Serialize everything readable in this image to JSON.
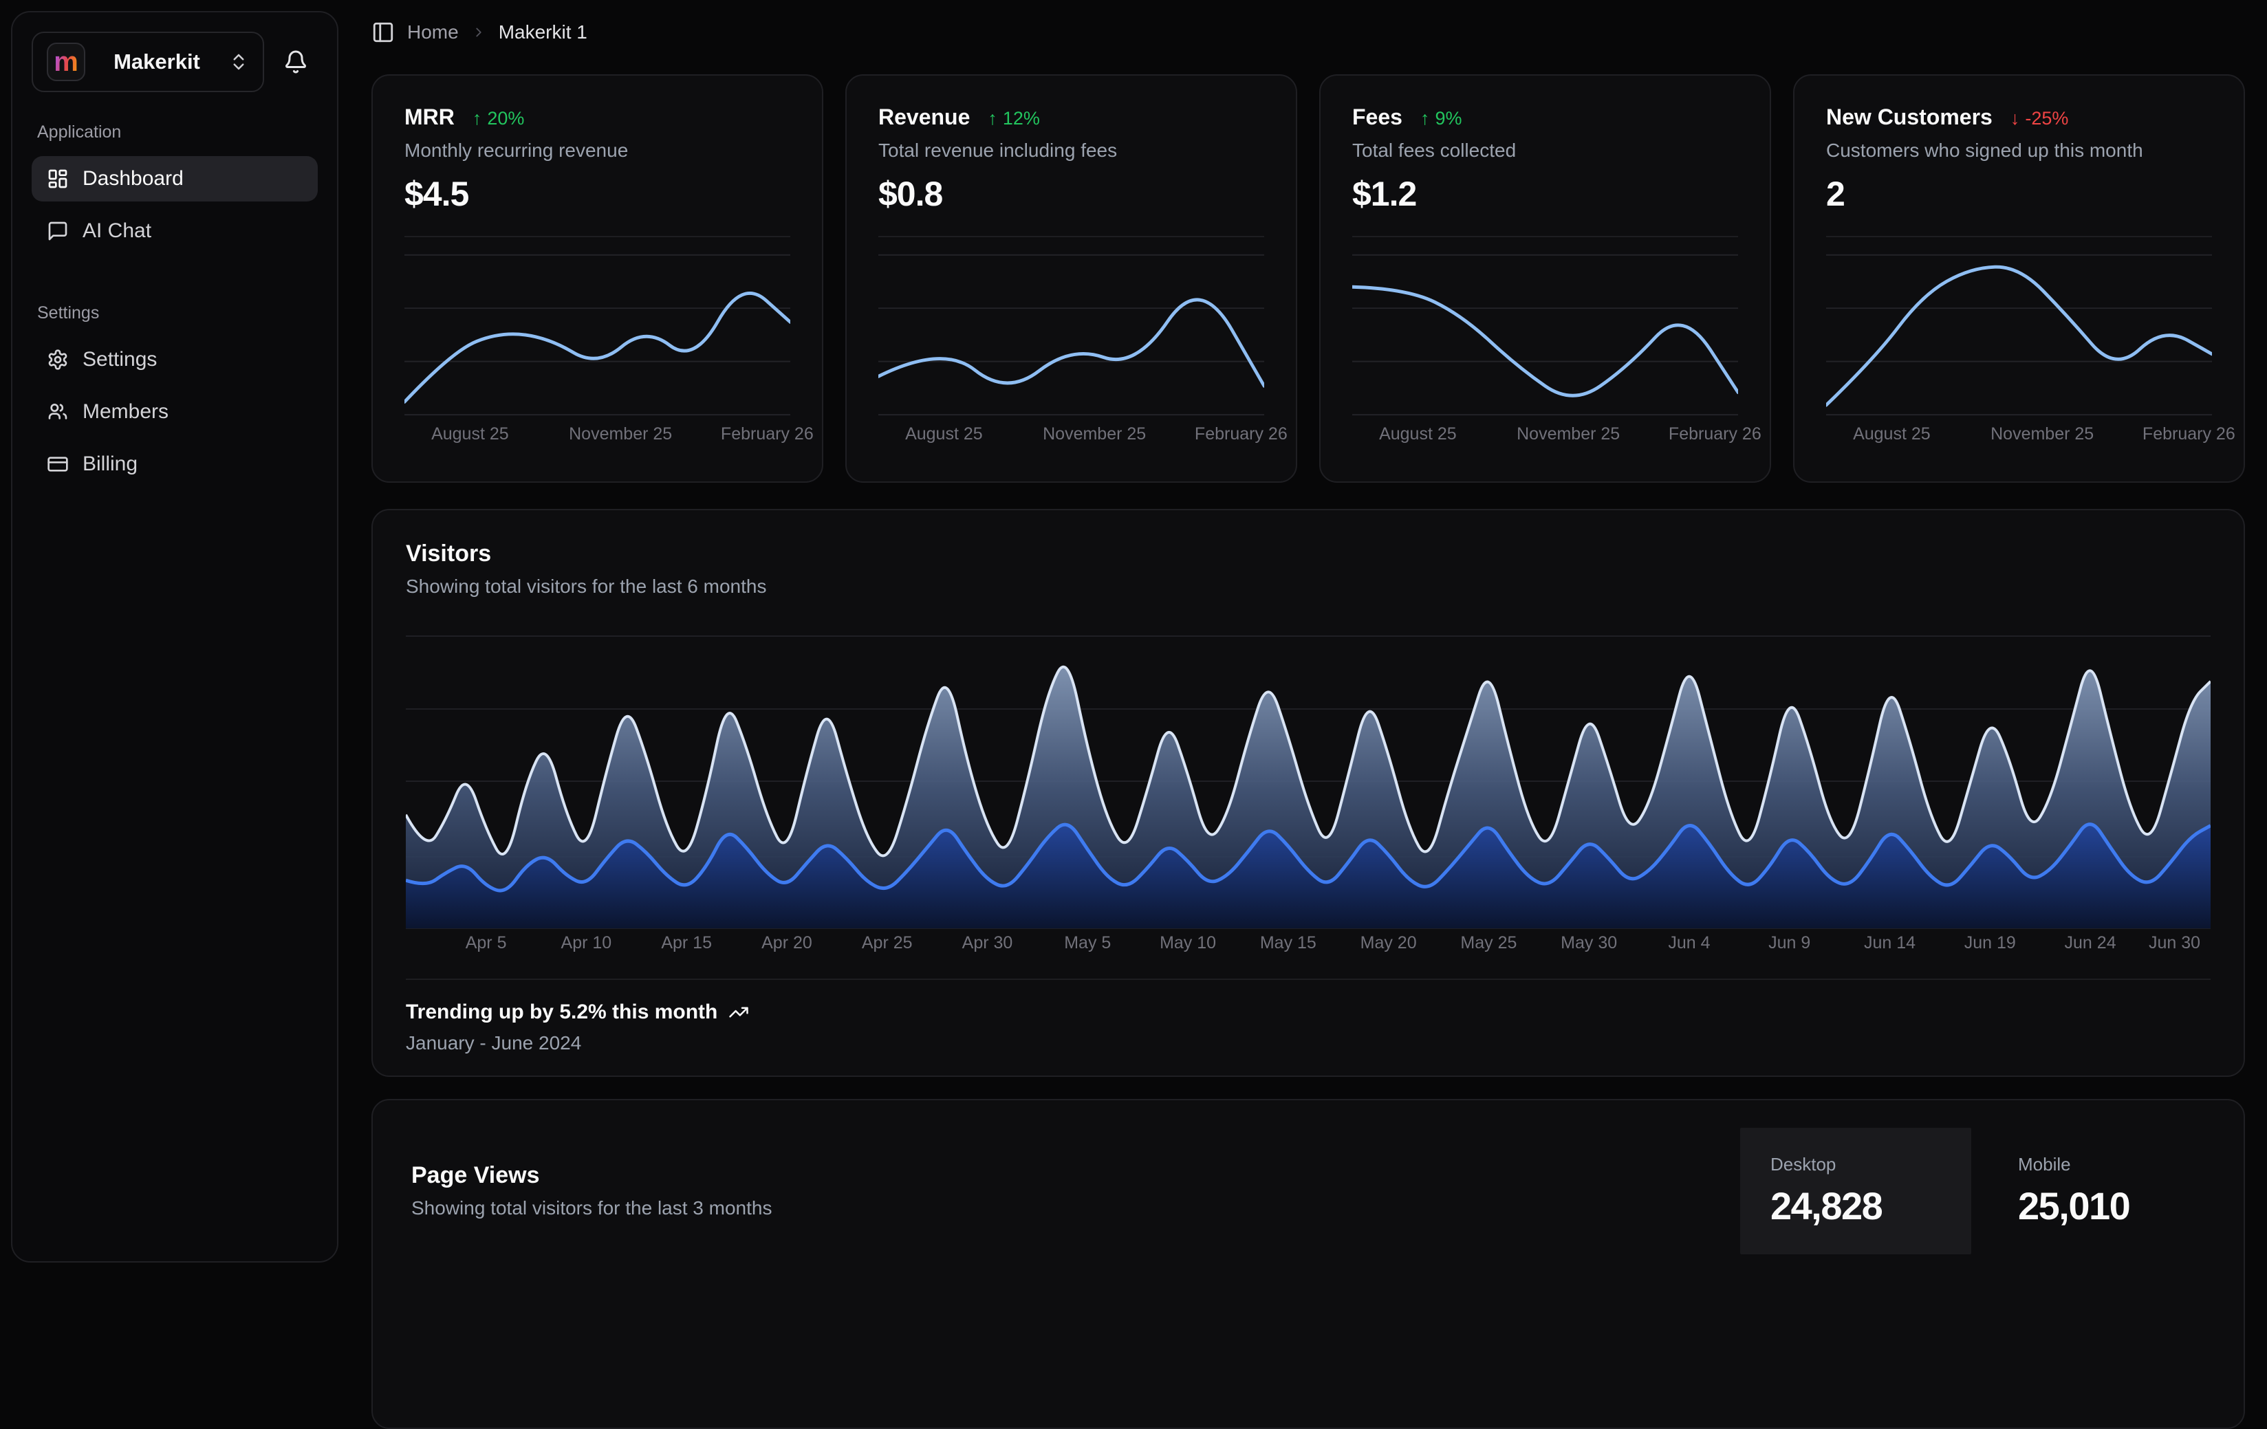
{
  "colors": {
    "accent_blue": "#3b82f6",
    "light_blue_line": "#d9e4f4",
    "spark_blue": "#8fbef3",
    "positive_green": "#22c55e",
    "negative_red": "#ef4444",
    "card_bg": "#0d0d0f",
    "card_border": "#1f1f23",
    "logo_gradient": [
      "#a855f7",
      "#e5484d",
      "#f59e0b"
    ]
  },
  "icons": {
    "arrow_up": "↑",
    "arrow_down": "↓"
  },
  "workspace": {
    "name": "Makerkit",
    "logo_letter": "m"
  },
  "breadcrumb": {
    "home": "Home",
    "current": "Makerkit 1"
  },
  "sidebar": {
    "sections": [
      {
        "label": "Application",
        "items": [
          {
            "label": "Dashboard",
            "icon": "dashboard-icon",
            "active": true
          },
          {
            "label": "AI Chat",
            "icon": "chat-icon",
            "active": false
          }
        ]
      },
      {
        "label": "Settings",
        "items": [
          {
            "label": "Settings",
            "icon": "gear-icon",
            "active": false
          },
          {
            "label": "Members",
            "icon": "users-icon",
            "active": false
          },
          {
            "label": "Billing",
            "icon": "credit-card-icon",
            "active": false
          }
        ]
      }
    ]
  },
  "stat_cards": [
    {
      "title": "MRR",
      "delta": "20%",
      "direction": "up",
      "description": "Monthly recurring revenue",
      "value": "$4.5"
    },
    {
      "title": "Revenue",
      "delta": "12%",
      "direction": "up",
      "description": "Total revenue including fees",
      "value": "$0.8"
    },
    {
      "title": "Fees",
      "delta": "9%",
      "direction": "up",
      "description": "Total fees collected",
      "value": "$1.2"
    },
    {
      "title": "New Customers",
      "delta": "-25%",
      "direction": "down",
      "description": "Customers who signed up this month",
      "value": "2"
    }
  ],
  "visitors_card": {
    "title": "Visitors",
    "subtitle": "Showing total visitors for the last 6 months",
    "footer_primary": "Trending up by 5.2% this month",
    "footer_secondary": "January - June 2024"
  },
  "page_views_card": {
    "title": "Page Views",
    "subtitle": "Showing total visitors for the last 3 months",
    "toggles": [
      {
        "label": "Desktop",
        "value": "24,828",
        "active": true
      },
      {
        "label": "Mobile",
        "value": "25,010",
        "active": false
      }
    ]
  },
  "chart_data": [
    {
      "type": "line",
      "title": "MRR sparkline",
      "ylim": [
        0,
        100
      ],
      "grid": true,
      "x_ticks": [
        "August 25",
        "November 25",
        "February 26"
      ],
      "values": [
        8,
        40,
        52,
        48,
        30,
        55,
        32,
        85,
        58
      ]
    },
    {
      "type": "line",
      "title": "Revenue sparkline",
      "ylim": [
        0,
        100
      ],
      "grid": true,
      "x_ticks": [
        "August 25",
        "November 25",
        "February 26"
      ],
      "values": [
        24,
        44,
        12,
        43,
        29,
        88,
        18
      ]
    },
    {
      "type": "line",
      "title": "Fees sparkline",
      "ylim": [
        0,
        100
      ],
      "grid": true,
      "x_ticks": [
        "August 25",
        "November 25",
        "February 26"
      ],
      "values": [
        80,
        79,
        62,
        30,
        6,
        30,
        67,
        14
      ]
    },
    {
      "type": "line",
      "title": "New Customers sparkline",
      "ylim": [
        0,
        100
      ],
      "grid": true,
      "x_ticks": [
        "August 25",
        "November 25",
        "February 26"
      ],
      "values": [
        6,
        35,
        75,
        92,
        93,
        62,
        27,
        55,
        38
      ]
    },
    {
      "type": "area",
      "title": "Visitors",
      "stacked": true,
      "grid": true,
      "x_range": [
        "Apr 1",
        "Jun 30"
      ],
      "days": 91,
      "ylim": [
        0,
        700
      ],
      "legend": "none",
      "x_tick_labels": [
        {
          "label": "Apr 5",
          "day_index": 4
        },
        {
          "label": "Apr 10",
          "day_index": 9
        },
        {
          "label": "Apr 15",
          "day_index": 14
        },
        {
          "label": "Apr 20",
          "day_index": 19
        },
        {
          "label": "Apr 25",
          "day_index": 24
        },
        {
          "label": "Apr 30",
          "day_index": 29
        },
        {
          "label": "May 5",
          "day_index": 34
        },
        {
          "label": "May 10",
          "day_index": 39
        },
        {
          "label": "May 15",
          "day_index": 44
        },
        {
          "label": "May 20",
          "day_index": 49
        },
        {
          "label": "May 25",
          "day_index": 54
        },
        {
          "label": "May 30",
          "day_index": 59
        },
        {
          "label": "Jun 4",
          "day_index": 64
        },
        {
          "label": "Jun 9",
          "day_index": 69
        },
        {
          "label": "Jun 14",
          "day_index": 74
        },
        {
          "label": "Jun 19",
          "day_index": 79
        },
        {
          "label": "Jun 24",
          "day_index": 84
        },
        {
          "label": "Jun 30",
          "day_index": 90
        }
      ],
      "series": [
        {
          "name": "mobile",
          "color": "#3b82f6",
          "values": [
            110,
            95,
            128,
            150,
            96,
            80,
            145,
            170,
            120,
            98,
            160,
            210,
            175,
            120,
            90,
            140,
            230,
            185,
            125,
            95,
            150,
            200,
            160,
            105,
            85,
            130,
            185,
            240,
            170,
            110,
            90,
            145,
            210,
            250,
            180,
            115,
            92,
            138,
            195,
            155,
            100,
            120,
            175,
            235,
            190,
            130,
            95,
            150,
            215,
            170,
            110,
            88,
            135,
            190,
            245,
            175,
            115,
            95,
            148,
            205,
            160,
            105,
            130,
            185,
            250,
            195,
            125,
            90,
            140,
            215,
            175,
            112,
            95,
            155,
            230,
            180,
            118,
            90,
            142,
            200,
            165,
            108,
            132,
            190,
            255,
            185,
            120,
            98,
            150,
            210,
            235
          ]
        },
        {
          "name": "desktop",
          "color": "#d9e4f4",
          "values": [
            150,
            80,
            120,
            210,
            130,
            60,
            190,
            260,
            140,
            70,
            200,
            310,
            220,
            110,
            60,
            170,
            300,
            230,
            130,
            70,
            210,
            320,
            190,
            100,
            60,
            160,
            280,
            350,
            210,
            120,
            70,
            190,
            330,
            380,
            230,
            130,
            80,
            180,
            290,
            200,
            90,
            140,
            260,
            340,
            250,
            150,
            80,
            200,
            320,
            230,
            120,
            60,
            180,
            270,
            360,
            240,
            130,
            80,
            190,
            300,
            210,
            110,
            150,
            260,
            370,
            250,
            140,
            80,
            200,
            330,
            240,
            130,
            90,
            210,
            340,
            250,
            140,
            80,
            190,
            290,
            220,
            110,
            160,
            270,
            380,
            260,
            150,
            90,
            200,
            310,
            330
          ]
        }
      ]
    },
    {
      "type": "table",
      "title": "Page Views summary",
      "categories": [
        "Desktop",
        "Mobile"
      ],
      "values": [
        24828,
        25010
      ]
    }
  ]
}
